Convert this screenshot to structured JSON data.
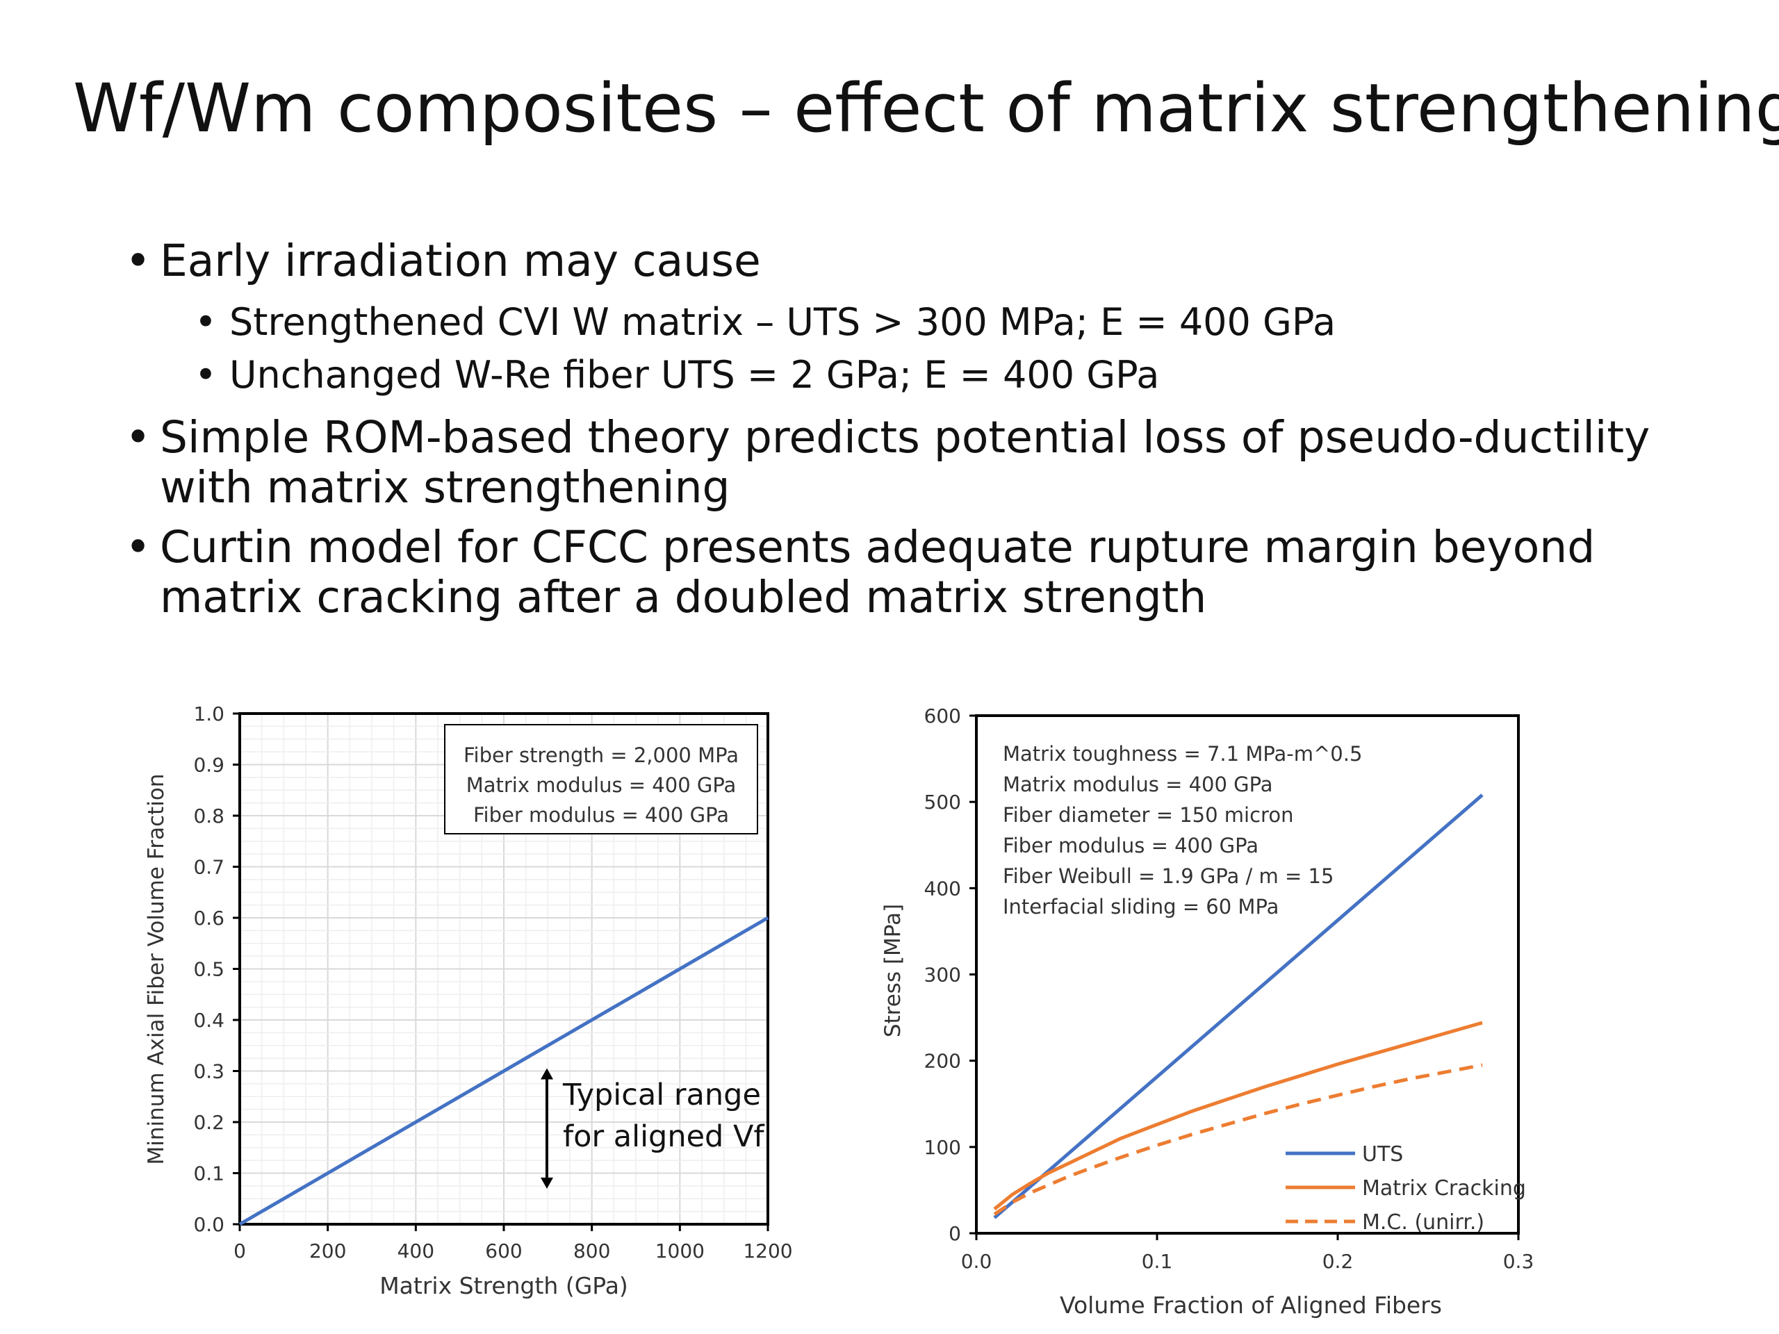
{
  "slide": {
    "title": "Wf/Wm composites – effect of matrix strengthening",
    "bullets": [
      {
        "text": "Early irradiation may cause",
        "sub": [
          "Strengthened CVI W matrix – UTS > 300 MPa; E = 400 GPa",
          "Unchanged W-Re fiber UTS = 2 GPa; E = 400 GPa"
        ]
      },
      {
        "text": "Simple ROM-based theory predicts potential loss of pseudo-ductility",
        "text2": "with matrix strengthening"
      },
      {
        "text": "Curtin model for CFCC presents adequate rupture margin beyond",
        "text2": "matrix cracking after a doubled matrix strength"
      }
    ]
  },
  "chart_data": [
    {
      "type": "line",
      "xlabel": "Matrix Strength (GPa)",
      "ylabel": "Mininum Axial Fiber Volume Fraction",
      "xlim": [
        0,
        1200
      ],
      "ylim": [
        0,
        1.0
      ],
      "xticks": [
        "0",
        "200",
        "400",
        "600",
        "800",
        "1000",
        "1200"
      ],
      "yticks": [
        "0.0",
        "0.1",
        "0.2",
        "0.3",
        "0.4",
        "0.5",
        "0.6",
        "0.7",
        "0.8",
        "0.9",
        "1.0"
      ],
      "grid": true,
      "series": [
        {
          "color": "#4472c4",
          "x": [
            0,
            1200
          ],
          "y": [
            0,
            0.6
          ]
        }
      ],
      "legend_box": [
        "Fiber strength  = 2,000 MPa",
        "Matrix modulus = 400 GPa",
        "Fiber modulus = 400 GPa"
      ],
      "annotation": {
        "line1": "Typical range",
        "line2": "for aligned Vf",
        "range": [
          0.3,
          0.15
        ]
      }
    },
    {
      "type": "line",
      "xlabel": "Volume Fraction of Aligned Fibers",
      "ylabel": "Stress [MPa]",
      "xlim": [
        0,
        0.3
      ],
      "ylim": [
        0,
        600
      ],
      "xticks": [
        "0.0",
        "0.1",
        "0.2",
        "0.3"
      ],
      "yticks": [
        "0",
        "100",
        "200",
        "300",
        "400",
        "500",
        "600"
      ],
      "grid": false,
      "legend_position": "bottom-right",
      "info_text": [
        "Matrix toughness = 7.1 MPa-m^0.5",
        "Matrix modulus = 400 GPa",
        "Fiber diameter  = 150 micron",
        "Fiber modulus = 400 GPa",
        "Fiber Weibull = 1.9 GPa / m = 15",
        "Interfacial sliding = 60 MPa"
      ],
      "series": [
        {
          "name": "UTS",
          "color": "#4472c4",
          "dash": false,
          "x": [
            0.01,
            0.28
          ],
          "y": [
            18,
            508
          ]
        },
        {
          "name": "Matrix Cracking",
          "color": "#ed7d31",
          "dash": false,
          "x": [
            0.01,
            0.02,
            0.03,
            0.04,
            0.05,
            0.06,
            0.08,
            0.1,
            0.12,
            0.14,
            0.16,
            0.18,
            0.2,
            0.22,
            0.24,
            0.26,
            0.28
          ],
          "y": [
            28,
            45,
            58,
            70,
            80,
            90,
            110,
            126,
            142,
            156,
            170,
            183,
            196,
            208,
            220,
            232,
            244
          ]
        },
        {
          "name": "M.C. (unirr.)",
          "color": "#ed7d31",
          "dash": true,
          "x": [
            0.01,
            0.02,
            0.03,
            0.04,
            0.05,
            0.06,
            0.08,
            0.1,
            0.12,
            0.14,
            0.16,
            0.18,
            0.2,
            0.22,
            0.24,
            0.26,
            0.28
          ],
          "y": [
            22,
            36,
            47,
            56,
            65,
            73,
            88,
            102,
            115,
            127,
            139,
            150,
            160,
            170,
            179,
            187,
            195
          ]
        }
      ]
    }
  ]
}
